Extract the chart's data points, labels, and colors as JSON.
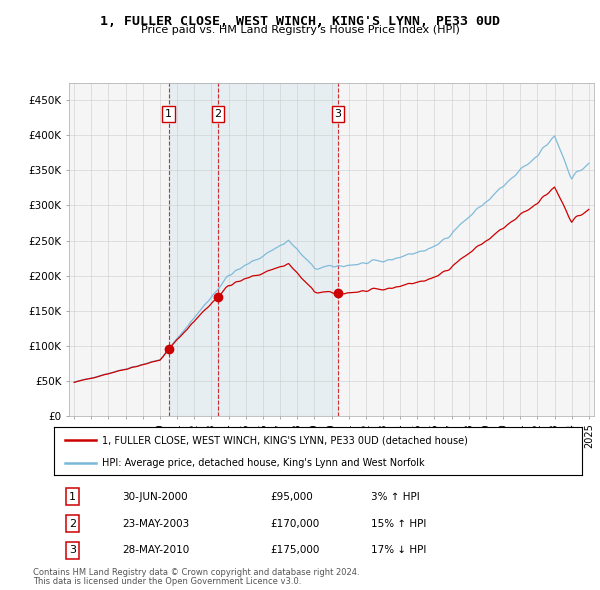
{
  "title": "1, FULLER CLOSE, WEST WINCH, KING'S LYNN, PE33 0UD",
  "subtitle": "Price paid vs. HM Land Registry's House Price Index (HPI)",
  "legend_line1": "1, FULLER CLOSE, WEST WINCH, KING'S LYNN, PE33 0UD (detached house)",
  "legend_line2": "HPI: Average price, detached house, King's Lynn and West Norfolk",
  "footer1": "Contains HM Land Registry data © Crown copyright and database right 2024.",
  "footer2": "This data is licensed under the Open Government Licence v3.0.",
  "transactions": [
    {
      "num": 1,
      "date": "30-JUN-2000",
      "price": "£95,000",
      "hpi_text": "3% ↑ HPI",
      "year": 2000.5,
      "price_val": 95000
    },
    {
      "num": 2,
      "date": "23-MAY-2003",
      "price": "£170,000",
      "hpi_text": "15% ↑ HPI",
      "year": 2003.38,
      "price_val": 170000
    },
    {
      "num": 3,
      "date": "28-MAY-2010",
      "price": "£175,000",
      "hpi_text": "17% ↓ HPI",
      "year": 2010.38,
      "price_val": 175000
    }
  ],
  "hpi_color": "#7ab8d9",
  "hpi_fill_color": "#deedf7",
  "price_color": "#cc0000",
  "vline_color": "#cc0000",
  "background_color": "#f5f5f5",
  "ylim": [
    0,
    475000
  ],
  "yticks": [
    0,
    50000,
    100000,
    150000,
    200000,
    250000,
    300000,
    350000,
    400000,
    450000
  ],
  "ytick_labels": [
    "£0",
    "£50K",
    "£100K",
    "£150K",
    "£200K",
    "£250K",
    "£300K",
    "£350K",
    "£400K",
    "£450K"
  ],
  "xlim_start": 1994.7,
  "xlim_end": 2025.3
}
